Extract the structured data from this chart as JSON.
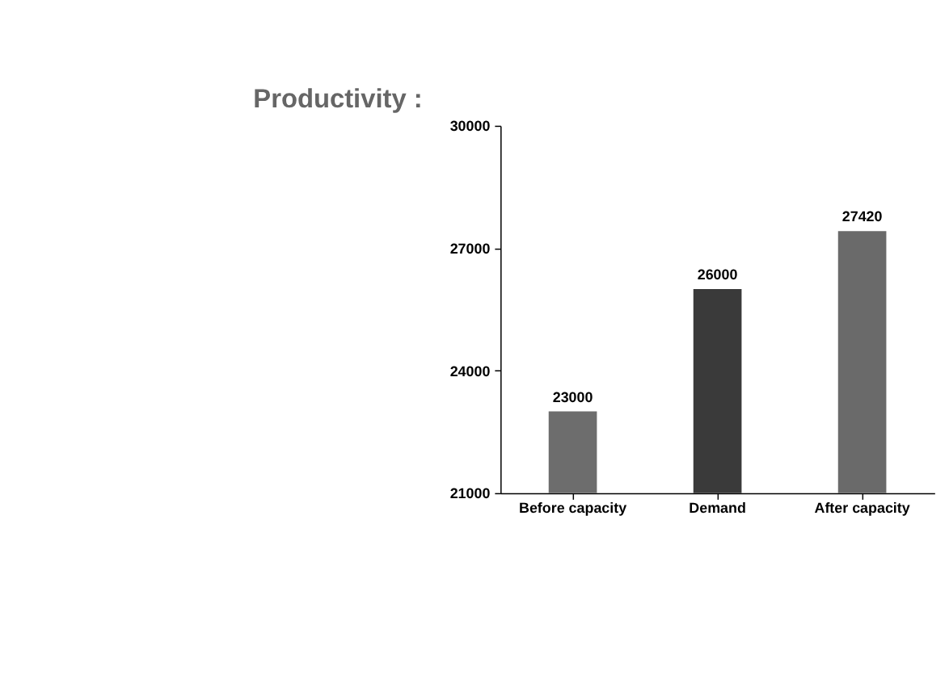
{
  "chart_data": {
    "type": "bar",
    "title": "Productivity :",
    "categories": [
      "Before capacity",
      "Demand",
      "After capacity"
    ],
    "values": [
      23000,
      26000,
      27420
    ],
    "colors": [
      "#6d6d6d",
      "#3a3a3a",
      "#6a6a6a"
    ],
    "ylim": [
      21000,
      30000
    ],
    "yticks": [
      21000,
      24000,
      27000,
      30000
    ],
    "data_labels": true,
    "grid": false
  }
}
